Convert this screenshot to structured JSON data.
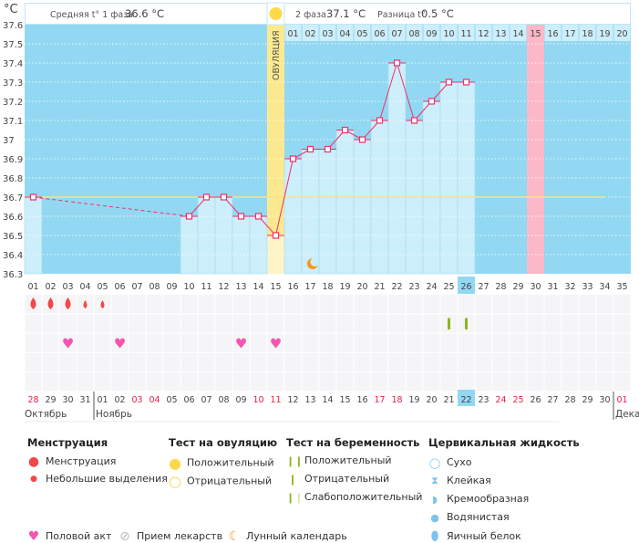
{
  "header": {
    "unit": "°C",
    "phase1_label": "Средняя t° 1 фаза",
    "phase1_value": "36.6 °C",
    "phase2_label": "2 фаза",
    "phase2_value": "37.1 °C",
    "diff_label": "Разница t°",
    "diff_value": "0.5 °C",
    "ovulation_label": "ОВУЛЯЦИЯ"
  },
  "chart_data": {
    "type": "line",
    "ylabel": "°C",
    "ylim": [
      36.3,
      37.6
    ],
    "yticks": [
      "37.6",
      "37.5",
      "37.4",
      "37.3",
      "37.2",
      "37.1",
      "37",
      "36.9",
      "36.8",
      "36.7",
      "36.6",
      "36.5",
      "36.4",
      "36.3"
    ],
    "cycle_days": [
      "01",
      "02",
      "03",
      "04",
      "05",
      "06",
      "07",
      "08",
      "09",
      "10",
      "11",
      "12",
      "13",
      "14",
      "15",
      "16",
      "17",
      "18",
      "19",
      "20",
      "21",
      "22",
      "23",
      "24",
      "25",
      "26",
      "27",
      "28",
      "29",
      "30",
      "31",
      "32",
      "33",
      "34",
      "35"
    ],
    "temperatures": [
      36.7,
      null,
      null,
      null,
      null,
      null,
      null,
      null,
      null,
      36.6,
      36.7,
      36.7,
      36.6,
      36.6,
      36.5,
      36.9,
      36.95,
      36.95,
      37.05,
      37.0,
      37.1,
      37.4,
      37.1,
      37.2,
      37.3,
      37.3,
      null,
      null,
      null,
      null,
      null,
      null,
      null,
      null,
      null
    ],
    "coverline": 36.7,
    "ovulation_day": 15,
    "expected_period_day": 30,
    "current_day": 26,
    "post_ovulation_days": [
      "01",
      "02",
      "03",
      "04",
      "05",
      "06",
      "07",
      "08",
      "09",
      "10",
      "11",
      "12",
      "13",
      "14",
      "15",
      "16",
      "17",
      "18",
      "19",
      "20"
    ],
    "dates": [
      "28",
      "29",
      "30",
      "31",
      "01",
      "02",
      "03",
      "04",
      "05",
      "06",
      "07",
      "08",
      "09",
      "10",
      "11",
      "12",
      "13",
      "14",
      "15",
      "16",
      "17",
      "18",
      "19",
      "20",
      "21",
      "22",
      "23",
      "24",
      "25",
      "26",
      "27",
      "28",
      "29",
      "30",
      "01"
    ],
    "weekend_dates_idx": [
      0,
      6,
      7,
      13,
      14,
      20,
      21,
      27,
      28,
      34
    ],
    "months": [
      {
        "label": "Октябрь",
        "start_day": 1
      },
      {
        "label": "Ноябрь",
        "start_day": 5
      },
      {
        "label": "Дека",
        "start_day": 35
      }
    ],
    "menstruation": {
      "heavy": [
        1,
        2,
        3
      ],
      "light": [
        4,
        5
      ]
    },
    "pregnancy_test_positive": [
      25,
      26
    ],
    "intercourse": [
      3,
      6,
      13,
      15
    ],
    "moon_day": 17
  },
  "legend": {
    "menstruation": {
      "title": "Менструация",
      "items": [
        "Менструация",
        "Небольшие выделения"
      ]
    },
    "ovulation_test": {
      "title": "Тест на овуляцию",
      "items": [
        "Положительный",
        "Отрицательный"
      ]
    },
    "pregnancy_test": {
      "title": "Тест на беременность",
      "items": [
        "Положительный",
        "Отрицательный",
        "Слабоположительный"
      ]
    },
    "cervical": {
      "title": "Цервикальная жидкость",
      "items": [
        "Сухо",
        "Клейкая",
        "Кремообразная",
        "Водянистая",
        "Яичный белок"
      ]
    },
    "other": [
      "Половой акт",
      "Прием лекарств",
      "Лунный календарь"
    ]
  },
  "colors": {
    "chart_bg": "#93d8f2",
    "bar": "#cdeefb",
    "line": "#f0306a",
    "ovulation": "#fce98f",
    "period": "#fbb8c8",
    "weekend": "#e8204a",
    "blood": "#f04848",
    "heart": "#f455b0",
    "test": "#8ab81c"
  }
}
